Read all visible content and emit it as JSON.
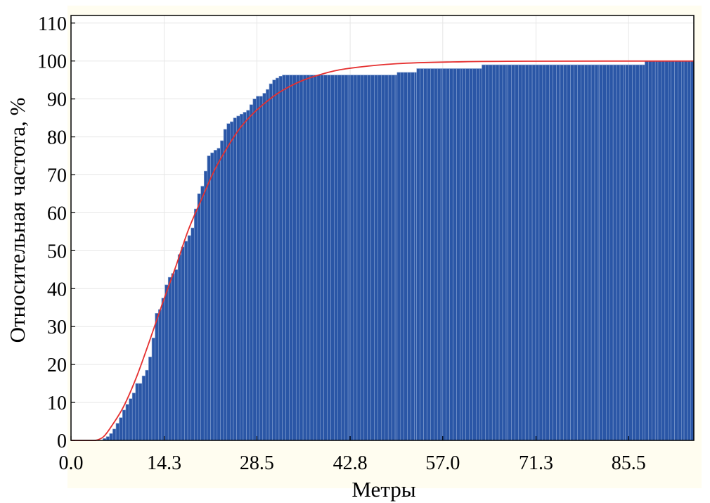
{
  "chart_data": {
    "type": "bar",
    "title": "",
    "xlabel": "Метры",
    "ylabel": "Относительная частота, %",
    "xlim": [
      0,
      95.5
    ],
    "ylim": [
      0,
      112
    ],
    "grid": true,
    "legend": "none",
    "colors": {
      "bar": "#2a56a6",
      "bar_edge": "#86a2d2",
      "curve": "#e53030",
      "plot_background": "#fffdf0"
    },
    "xticks": [
      "0.0",
      "14.3",
      "28.5",
      "42.8",
      "57.0",
      "71.3",
      "85.5"
    ],
    "yticks": [
      "0",
      "10",
      "20",
      "30",
      "40",
      "50",
      "60",
      "70",
      "80",
      "90",
      "100",
      "110"
    ],
    "series": [
      {
        "type": "cumulative-histogram",
        "x": [
          4.9,
          5.4,
          5.9,
          6.4,
          6.9,
          7.4,
          7.9,
          8.4,
          8.9,
          9.4,
          9.9,
          10.4,
          10.9,
          11.4,
          11.9,
          12.4,
          12.9,
          13.4,
          13.9,
          14.4,
          14.9,
          15.4,
          15.9,
          16.4,
          16.9,
          17.4,
          17.9,
          18.4,
          18.9,
          19.4,
          19.9,
          20.4,
          20.9,
          21.4,
          21.9,
          22.4,
          22.9,
          23.4,
          23.9,
          24.4,
          24.9,
          25.4,
          25.9,
          26.4,
          26.9,
          27.4,
          27.9,
          28.4,
          28.9,
          29.4,
          29.9,
          30.4,
          30.9,
          31.4,
          31.9,
          32.4,
          42.8,
          50.0,
          53.0,
          57.0,
          60.0,
          63.0,
          67.0,
          75.0,
          81.0,
          85.0,
          88.0,
          90.0,
          92.0,
          94.0,
          95.0
        ],
        "values": [
          0.5,
          1.0,
          1.8,
          3.0,
          4.5,
          6.0,
          8.0,
          9.5,
          11.0,
          12.5,
          15.0,
          15.0,
          17.0,
          18.5,
          22.0,
          27.0,
          33.5,
          34.5,
          37.5,
          41.0,
          43.0,
          44.0,
          45.0,
          49.0,
          51.0,
          52.5,
          54.0,
          56.0,
          61.0,
          65.0,
          67.0,
          71.0,
          75.0,
          75.8,
          76.5,
          77.0,
          79.0,
          82.0,
          83.5,
          84.0,
          85.0,
          85.5,
          86.0,
          86.5,
          87.0,
          88.5,
          90.0,
          90.7,
          90.7,
          91.5,
          92.5,
          94.0,
          95.0,
          95.5,
          96.0,
          96.3,
          96.3,
          97.0,
          98.0,
          98.0,
          98.0,
          99.0,
          99.0,
          99.0,
          99.0,
          99.0,
          100,
          100,
          100,
          100,
          100
        ]
      },
      {
        "type": "fitted-curve",
        "x": [
          0,
          3,
          4,
          5,
          6,
          8,
          10,
          12,
          14,
          16,
          18,
          20,
          22,
          24,
          26,
          28,
          30,
          32,
          35,
          38,
          42,
          50,
          60,
          70,
          95.5
        ],
        "values": [
          0,
          0,
          0.1,
          1.0,
          3.2,
          8.7,
          16.5,
          26.0,
          36.0,
          45.5,
          55.5,
          63.5,
          71.2,
          77.3,
          82.5,
          86.3,
          89.3,
          91.8,
          94.5,
          96.3,
          97.9,
          99.3,
          99.8,
          99.95,
          100
        ]
      }
    ]
  }
}
